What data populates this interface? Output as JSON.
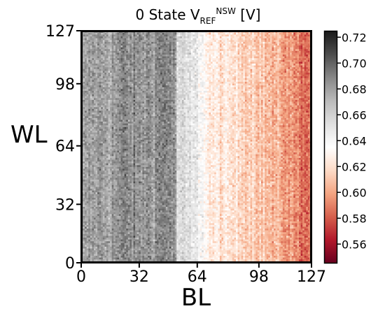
{
  "chart_data": {
    "type": "heatmap",
    "title": {
      "prefix": "0 State V",
      "subscript": "REF",
      "superscript": "NSW",
      "suffix": " [V]"
    },
    "xlabel": "BL",
    "ylabel": "WL",
    "xlim": [
      0,
      127
    ],
    "ylim": [
      0,
      127
    ],
    "xticks": [
      0,
      32,
      64,
      98,
      127
    ],
    "yticks": [
      0,
      32,
      64,
      98,
      127
    ],
    "grid_size": [
      128,
      128
    ],
    "colorbar": {
      "min": 0.545,
      "max": 0.725,
      "ticks": [
        0.56,
        0.58,
        0.6,
        0.62,
        0.64,
        0.66,
        0.68,
        0.7,
        0.72
      ],
      "tick_labels": [
        "0.56",
        "0.58",
        "0.60",
        "0.62",
        "0.64",
        "0.66",
        "0.68",
        "0.70",
        "0.72"
      ],
      "colormap": "RdGy",
      "stops": [
        [
          "0.00",
          "#67001f"
        ],
        [
          "0.10",
          "#b2182b"
        ],
        [
          "0.20",
          "#d6604d"
        ],
        [
          "0.30",
          "#f4a582"
        ],
        [
          "0.40",
          "#fddbc7"
        ],
        [
          "0.50",
          "#ffffff"
        ],
        [
          "0.60",
          "#e0e0e0"
        ],
        [
          "0.70",
          "#bababa"
        ],
        [
          "0.80",
          "#878787"
        ],
        [
          "0.90",
          "#4d4d4d"
        ],
        [
          "1.00",
          "#1a1a1a"
        ]
      ]
    },
    "column_mean_profile_BL_to_V": [
      [
        0,
        0.675
      ],
      [
        8,
        0.682
      ],
      [
        16,
        0.68
      ],
      [
        24,
        0.688
      ],
      [
        32,
        0.683
      ],
      [
        40,
        0.686
      ],
      [
        48,
        0.692
      ],
      [
        52,
        0.68
      ],
      [
        53,
        0.655
      ],
      [
        60,
        0.65
      ],
      [
        68,
        0.64
      ],
      [
        70,
        0.625
      ],
      [
        80,
        0.621
      ],
      [
        90,
        0.618
      ],
      [
        96,
        0.616
      ],
      [
        100,
        0.611
      ],
      [
        106,
        0.603
      ],
      [
        112,
        0.601
      ],
      [
        118,
        0.593
      ],
      [
        124,
        0.586
      ],
      [
        127,
        0.59
      ]
    ],
    "pixel_noise_std_V": 0.01
  }
}
